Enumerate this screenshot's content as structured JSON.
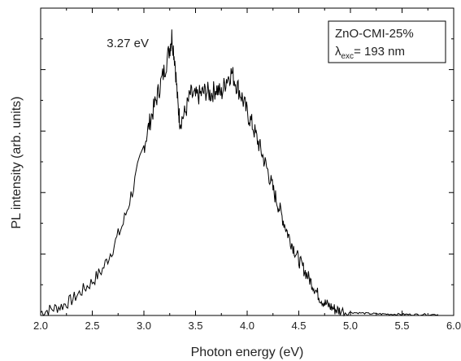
{
  "chart_data": {
    "type": "line",
    "xlabel": "Photon energy (eV)",
    "ylabel": "PL intensity (arb. units)",
    "xlim": [
      2.0,
      6.0
    ],
    "ylim": [
      0,
      1.0
    ],
    "x_ticks": [
      "2.0",
      "2.5",
      "3.0",
      "3.5",
      "4.0",
      "4.5",
      "5.0",
      "5.5",
      "6.0"
    ],
    "y_tick_labels_shown": false,
    "grid": false,
    "legend": {
      "placement": "top-right",
      "line1": "ZnO-CMI-25%",
      "symbol": "λ",
      "subscript": "exc",
      "value": "= 193 nm"
    },
    "annotations": [
      {
        "text": "3.27 eV",
        "x": 3.27,
        "y": 0.92
      }
    ],
    "series": [
      {
        "x": [
          2.0,
          2.1,
          2.2,
          2.3,
          2.4,
          2.5,
          2.6,
          2.7,
          2.8,
          2.9,
          3.0,
          3.05,
          3.1,
          3.15,
          3.2,
          3.25,
          3.27,
          3.3,
          3.33,
          3.35,
          3.4,
          3.45,
          3.5,
          3.55,
          3.6,
          3.65,
          3.7,
          3.75,
          3.8,
          3.85,
          3.9,
          3.95,
          4.0,
          4.05,
          4.1,
          4.15,
          4.2,
          4.25,
          4.3,
          4.35,
          4.4,
          4.45,
          4.5,
          4.55,
          4.6,
          4.65,
          4.7,
          4.75,
          4.8,
          4.85,
          4.9,
          5.0,
          5.1,
          5.2,
          5.3,
          5.4,
          5.5,
          5.6,
          5.7,
          5.85
        ],
        "y": [
          0.01,
          0.02,
          0.03,
          0.05,
          0.08,
          0.11,
          0.15,
          0.22,
          0.3,
          0.42,
          0.55,
          0.62,
          0.68,
          0.74,
          0.8,
          0.87,
          0.91,
          0.83,
          0.68,
          0.63,
          0.66,
          0.72,
          0.71,
          0.72,
          0.73,
          0.72,
          0.74,
          0.72,
          0.77,
          0.79,
          0.75,
          0.71,
          0.66,
          0.62,
          0.57,
          0.52,
          0.47,
          0.41,
          0.36,
          0.31,
          0.26,
          0.22,
          0.18,
          0.15,
          0.12,
          0.09,
          0.06,
          0.04,
          0.03,
          0.02,
          0.015,
          0.01,
          0.008,
          0.006,
          0.005,
          0.004,
          0.004,
          0.003,
          0.003,
          0.003
        ]
      }
    ]
  }
}
